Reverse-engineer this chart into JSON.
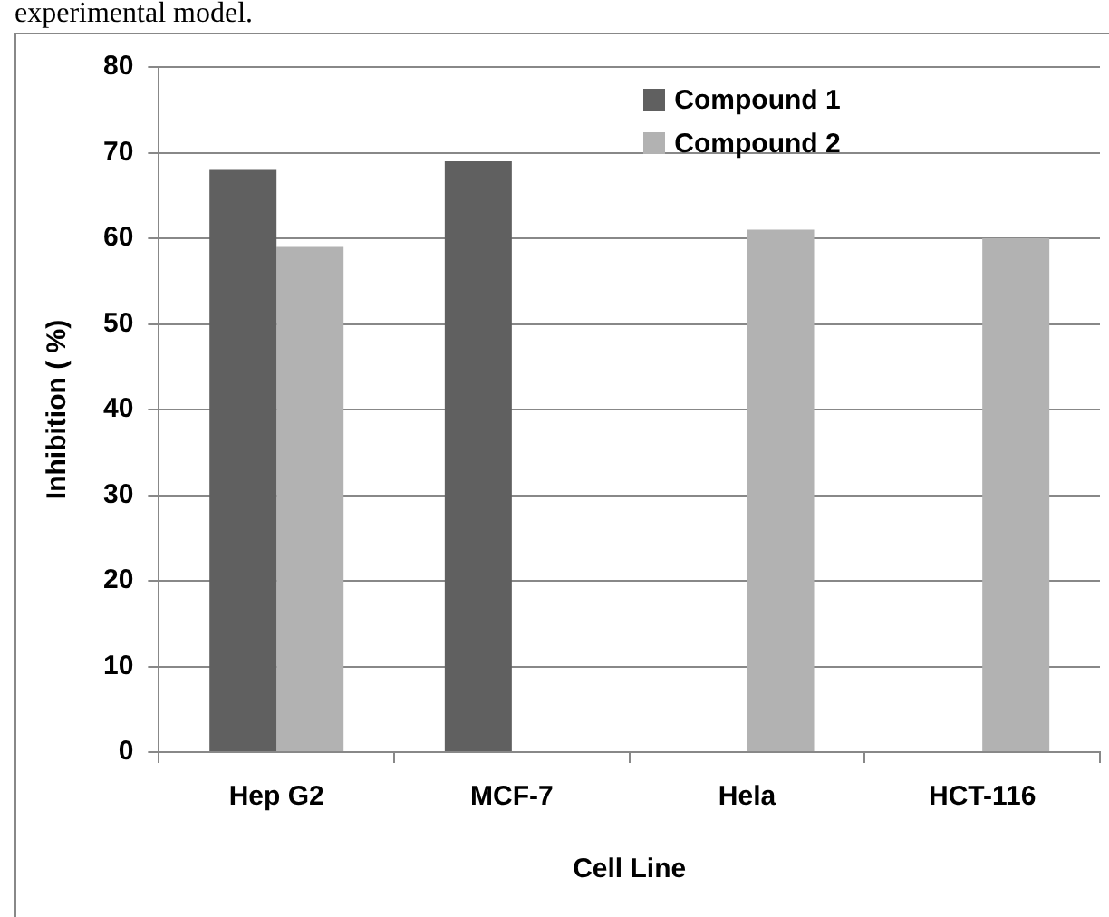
{
  "chart_data": {
    "type": "bar",
    "xlabel": "Cell Line",
    "ylabel": "Inhibition ( %)",
    "annotations": [
      "experimental model."
    ],
    "categories": [
      "Hep G2",
      "MCF-7",
      "Hela",
      "HCT-116"
    ],
    "series": [
      {
        "name": "Compound 1",
        "color": "#606060",
        "values": [
          68,
          69,
          null,
          null
        ]
      },
      {
        "name": "Compound 2",
        "color": "#b2b2b2",
        "values": [
          59,
          null,
          61,
          60
        ]
      }
    ],
    "ylim": [
      0,
      80
    ],
    "yticks": [
      0,
      10,
      20,
      30,
      40,
      50,
      60,
      70,
      80
    ],
    "grid": "y",
    "legend": "top"
  }
}
